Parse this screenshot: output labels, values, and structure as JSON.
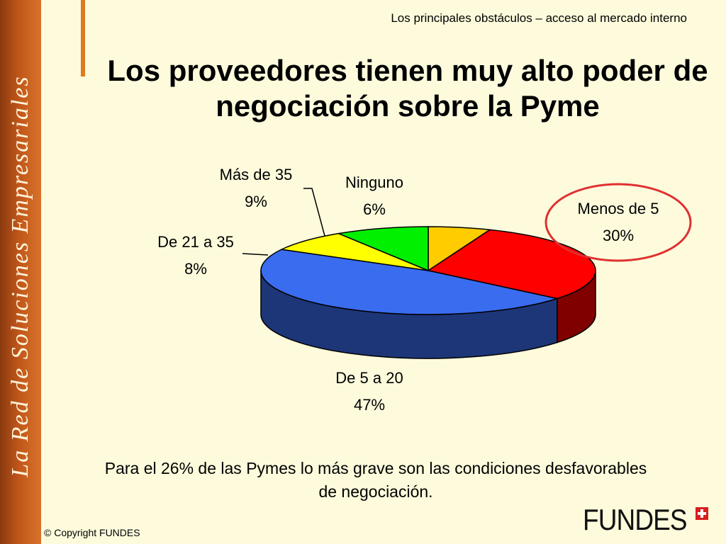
{
  "sidebar": {
    "text": "La Red de Soluciones Empresariales"
  },
  "header": {
    "subtitle": "Los principales obstáculos – acceso al mercado interno"
  },
  "slide": {
    "title": "Los proveedores tienen muy alto poder de negociación sobre la Pyme"
  },
  "chart_data": {
    "type": "pie",
    "title": "",
    "slices": [
      {
        "label": "Ninguno",
        "value": 6,
        "value_label": "6%",
        "color": "#ffcc00"
      },
      {
        "label": "Menos de 5",
        "value": 30,
        "value_label": "30%",
        "color": "#ff0000"
      },
      {
        "label": "De 5 a 20",
        "value": 47,
        "value_label": "47%",
        "color": "#3a6cf0"
      },
      {
        "label": "De 21 a 35",
        "value": 8,
        "value_label": "8%",
        "color": "#ffff00"
      },
      {
        "label": "Más de 35",
        "value": 9,
        "value_label": "9%",
        "color": "#00f000"
      }
    ],
    "style": "3d",
    "highlighted_slice": "Menos de 5",
    "highlight_color": "#e03030"
  },
  "footer": {
    "note": "Para el 26% de las Pymes lo  más grave son las condiciones desfavorables de negociación.",
    "copyright": "© Copyright FUNDES",
    "logo_text": "FUNDES"
  }
}
